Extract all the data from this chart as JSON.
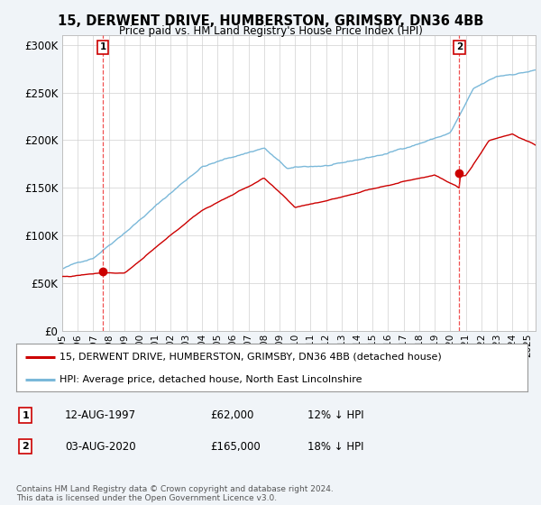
{
  "title": "15, DERWENT DRIVE, HUMBERSTON, GRIMSBY, DN36 4BB",
  "subtitle": "Price paid vs. HM Land Registry's House Price Index (HPI)",
  "background_color": "#f0f4f8",
  "plot_bg_color": "#ffffff",
  "hpi_color": "#7ab8d9",
  "price_color": "#cc0000",
  "dashed_color": "#ee3333",
  "purchase1_date": 1997.617,
  "purchase1_price": 62000,
  "purchase1_label": "1",
  "purchase2_date": 2020.583,
  "purchase2_price": 165000,
  "purchase2_label": "2",
  "xmin": 1995,
  "xmax": 2025.5,
  "ymin": 0,
  "ymax": 310000,
  "yticks": [
    0,
    50000,
    100000,
    150000,
    200000,
    250000,
    300000
  ],
  "ytick_labels": [
    "£0",
    "£50K",
    "£100K",
    "£150K",
    "£200K",
    "£250K",
    "£300K"
  ],
  "xticks": [
    1995,
    1996,
    1997,
    1998,
    1999,
    2000,
    2001,
    2002,
    2003,
    2004,
    2005,
    2006,
    2007,
    2008,
    2009,
    2010,
    2011,
    2012,
    2013,
    2014,
    2015,
    2016,
    2017,
    2018,
    2019,
    2020,
    2021,
    2022,
    2023,
    2024,
    2025
  ],
  "legend_line1": "15, DERWENT DRIVE, HUMBERSTON, GRIMSBY, DN36 4BB (detached house)",
  "legend_line2": "HPI: Average price, detached house, North East Lincolnshire",
  "annotation1_date": "12-AUG-1997",
  "annotation1_price": "£62,000",
  "annotation1_hpi": "12% ↓ HPI",
  "annotation2_date": "03-AUG-2020",
  "annotation2_price": "£165,000",
  "annotation2_hpi": "18% ↓ HPI",
  "footnote": "Contains HM Land Registry data © Crown copyright and database right 2024.\nThis data is licensed under the Open Government Licence v3.0."
}
